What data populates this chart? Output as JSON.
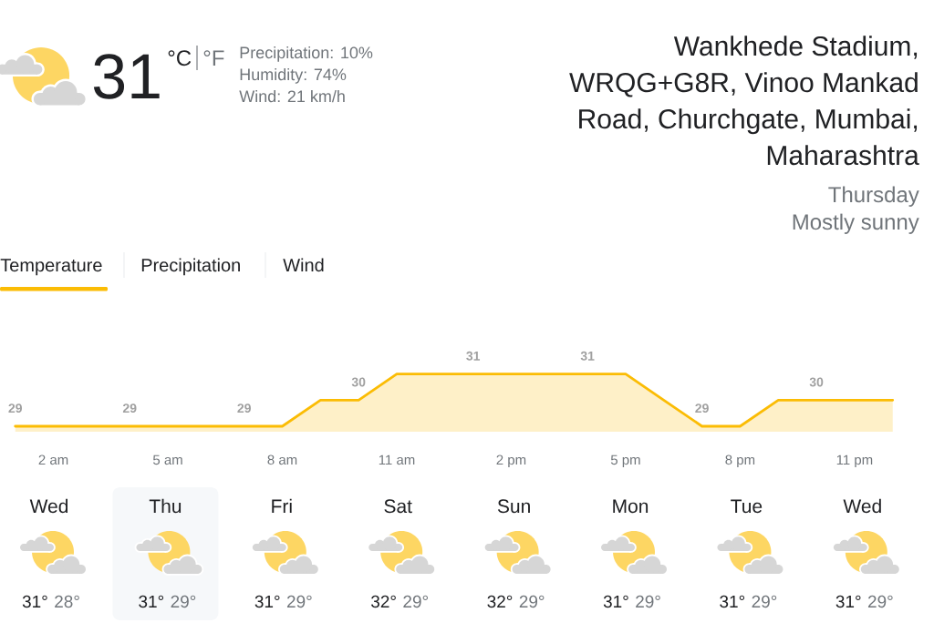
{
  "chart_data": [
    {
      "type": "other",
      "title": "Wankhede Stadium, WRQG+G8R, Vinoo Mankad Road, Churchgate, Mumbai, Maharashtra",
      "subtitle": "Thursday",
      "annotations": [
        "31",
        "°C",
        "°F",
        "Precipitation: 10%",
        "Humidity: 74%",
        "Wind: 21 km/h",
        "Mostly sunny",
        "Temperature",
        "Precipitation",
        "Wind"
      ]
    },
    {
      "type": "area",
      "categories": [
        null,
        "2 am",
        null,
        null,
        "5 am",
        null,
        null,
        "8 am",
        null,
        null,
        "11 am",
        null,
        null,
        "2 pm",
        null,
        null,
        "5 pm",
        null,
        null,
        "8 pm",
        null,
        null,
        "11 pm",
        null
      ],
      "values": [
        29,
        29,
        29,
        29,
        29,
        29,
        29,
        29,
        30,
        30,
        31,
        31,
        31,
        31,
        31,
        31,
        31,
        30,
        29,
        29,
        30,
        30,
        30,
        30
      ],
      "value_labels": [
        "29",
        null,
        null,
        "29",
        null,
        null,
        "29",
        null,
        null,
        "30",
        null,
        null,
        "31",
        null,
        null,
        "31",
        null,
        null,
        "29",
        null,
        null,
        "30",
        null,
        null
      ],
      "color": "#fbbc04",
      "tick_labels": "x"
    },
    {
      "type": "other",
      "categories": [
        "Wed",
        "Thu",
        "Fri",
        "Sat",
        "Sun",
        "Mon",
        "Tue",
        "Wed"
      ],
      "annotations": [
        "31°",
        "28°",
        "31°",
        "29°",
        "31°",
        "29°",
        "32°",
        "29°",
        "32°",
        "29°",
        "31°",
        "29°",
        "31°",
        "29°",
        "31°",
        "29°"
      ]
    }
  ]
}
